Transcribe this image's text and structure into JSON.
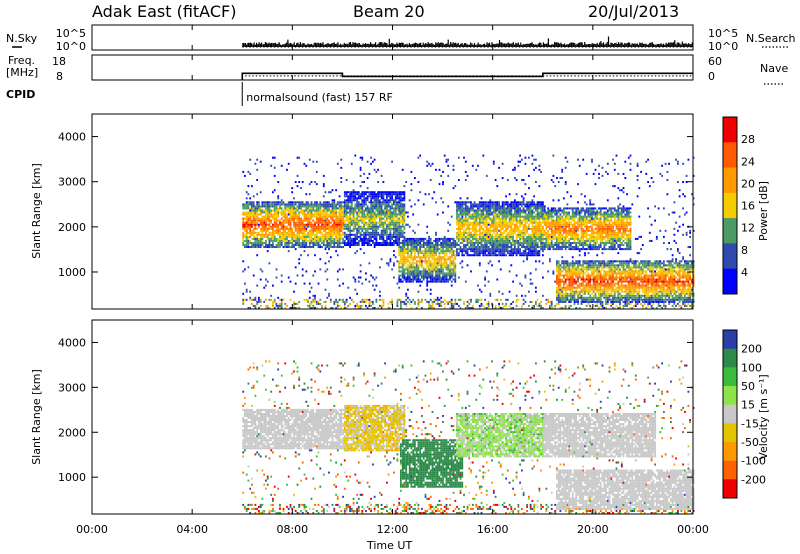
{
  "header": {
    "radar": "Adak East (fitACF)",
    "beam": "Beam 20",
    "date": "20/Jul/2013"
  },
  "chart_data": [
    {
      "panel": "N.Sky / N.Search",
      "type": "scatter",
      "left_label": "N.Sky",
      "right_label": "N.Search",
      "y_ticks_left": [
        "10^5",
        "10^0"
      ],
      "y_ticks_right": [
        "10^5",
        "10^0"
      ],
      "x_range_hours": [
        0,
        24
      ],
      "data_start_hour": 6.0
    },
    {
      "panel": "Freq / Nave",
      "type": "line",
      "left_label_line1": "Freq.",
      "left_label_line2": "[MHz]",
      "right_label": "Nave",
      "y_ticks_left": [
        18,
        8
      ],
      "y_ticks_right": [
        60,
        0
      ],
      "freq_steps": [
        {
          "start": 6.0,
          "end": 10.0,
          "value": 12.5
        },
        {
          "start": 10.0,
          "end": 18.0,
          "value": 10.4
        },
        {
          "start": 18.0,
          "end": 24.0,
          "value": 12.5
        }
      ],
      "nave_level": 10,
      "cpid_label": "CPID",
      "cpid_text": "normalsound (fast) 157 RF",
      "cpid_start": 6.0
    },
    {
      "panel": "power",
      "type": "heatmap",
      "ylabel": "Slant Range [km]",
      "ylim": [
        180,
        4500
      ],
      "y_ticks": [
        1000,
        2000,
        3000,
        4000
      ],
      "x_range_hours": [
        0,
        24
      ],
      "data_start_hour": 6.0,
      "colorbar": {
        "label": "Power [dB]",
        "ticks": [
          "28",
          "24",
          "20",
          "16",
          "12",
          "8",
          "4"
        ],
        "colors": [
          "#ee0000",
          "#ff5a00",
          "#ff9a00",
          "#f4cc00",
          "#4c9a64",
          "#2f4bb0",
          "#0000ff"
        ]
      },
      "bands": [
        {
          "t0": 6.0,
          "t1": 10.0,
          "r0": 1750,
          "r1": 2300,
          "peak_db": 28
        },
        {
          "t0": 10.0,
          "t1": 12.5,
          "r0": 1800,
          "r1": 2500,
          "peak_db": 18
        },
        {
          "t0": 12.2,
          "t1": 14.5,
          "r0": 1000,
          "r1": 1500,
          "peak_db": 22
        },
        {
          "t0": 14.5,
          "t1": 18.0,
          "r0": 1600,
          "r1": 2300,
          "peak_db": 22
        },
        {
          "t0": 18.0,
          "t1": 21.5,
          "r0": 1700,
          "r1": 2150,
          "peak_db": 26
        },
        {
          "t0": 18.5,
          "t1": 24.0,
          "r0": 550,
          "r1": 1000,
          "peak_db": 28
        }
      ]
    },
    {
      "panel": "velocity",
      "type": "heatmap",
      "ylabel": "Slant Range [km]",
      "ylim": [
        180,
        4500
      ],
      "y_ticks": [
        1000,
        2000,
        3000,
        4000
      ],
      "x_range_hours": [
        0,
        24
      ],
      "x_ticks": [
        "00:00",
        "04:00",
        "08:00",
        "12:00",
        "16:00",
        "20:00",
        "00:00"
      ],
      "xlabel": "Time UT",
      "data_start_hour": 6.0,
      "colorbar": {
        "label": "Velocity [m s⁻¹]",
        "ticks": [
          "200",
          "100",
          "50",
          "15",
          "-15",
          "-50",
          "-100",
          "-200"
        ],
        "colors": [
          "#2a3da8",
          "#2e8a4a",
          "#3dbb3d",
          "#8ee24a",
          "#c8c8c8",
          "#e2c400",
          "#ff9900",
          "#ff6000",
          "#ee0000"
        ]
      },
      "bands": [
        {
          "t0": 6.0,
          "t1": 10.0,
          "r0": 1800,
          "r1": 2300,
          "vel": 0
        },
        {
          "t0": 10.0,
          "t1": 12.5,
          "r0": 1750,
          "r1": 2400,
          "vel": -20
        },
        {
          "t0": 12.3,
          "t1": 14.8,
          "r0": 950,
          "r1": 1600,
          "vel": 120
        },
        {
          "t0": 14.5,
          "t1": 18.0,
          "r0": 1600,
          "r1": 2200,
          "vel": 20
        },
        {
          "t0": 18.0,
          "t1": 22.5,
          "r0": 1600,
          "r1": 2200,
          "vel": 0
        },
        {
          "t0": 18.5,
          "t1": 24.0,
          "r0": 450,
          "r1": 950,
          "vel": 0
        }
      ]
    }
  ]
}
